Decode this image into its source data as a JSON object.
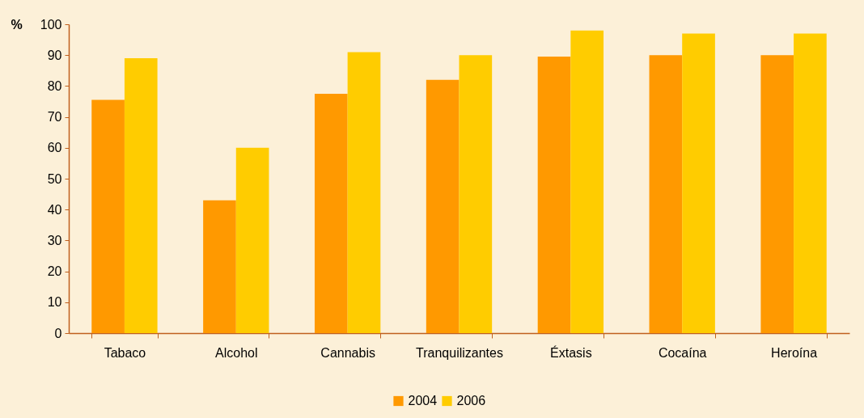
{
  "chart_data": {
    "type": "bar",
    "ylabel": "%",
    "categories": [
      "Tabaco",
      "Alcohol",
      "Cannabis",
      "Tranquilizantes",
      "Éxtasis",
      "Cocaína",
      "Heroína"
    ],
    "series": [
      {
        "name": "2004",
        "color": "#ff9900",
        "values": [
          75.5,
          43,
          77.5,
          82,
          89.5,
          90,
          90
        ]
      },
      {
        "name": "2006",
        "color": "#ffcc00",
        "values": [
          89,
          60,
          91,
          90,
          98,
          97,
          97
        ]
      }
    ],
    "ylim": [
      0,
      100
    ],
    "yticks": [
      0,
      10,
      20,
      30,
      40,
      50,
      60,
      70,
      80,
      90,
      100
    ],
    "grid": false,
    "legend": "bottom"
  }
}
